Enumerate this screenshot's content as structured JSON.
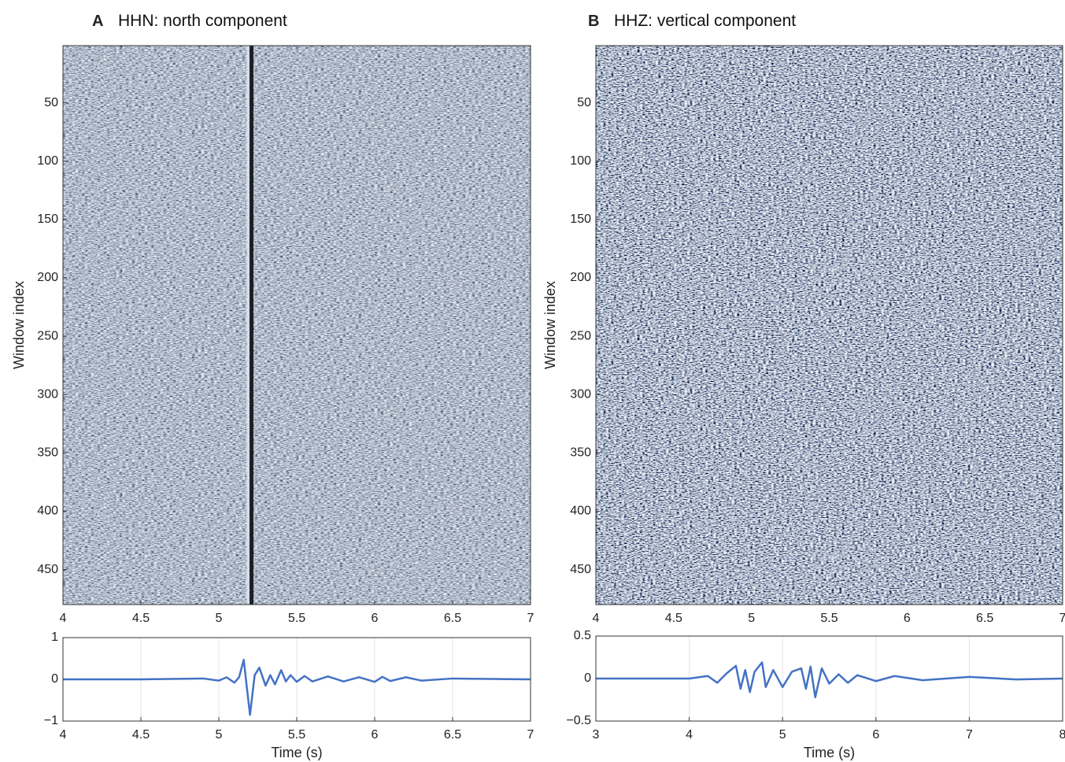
{
  "chart_data": [
    {
      "type": "heatmap",
      "panel_label": "A",
      "title": "HHN: north component",
      "ylabel": "Window index",
      "xlim": [
        4,
        7
      ],
      "xticks": [
        4,
        4.5,
        5,
        5.5,
        6,
        6.5,
        7
      ],
      "ylim": [
        1,
        480
      ],
      "yticks": [
        50,
        100,
        150,
        200,
        250,
        300,
        350,
        400,
        450
      ],
      "y_reversed": true
    },
    {
      "type": "line",
      "xlabel": "Time (s)",
      "xlim": [
        4,
        7
      ],
      "xticks": [
        4,
        4.5,
        5,
        5.5,
        6,
        6.5,
        7
      ],
      "ylim": [
        -1,
        1
      ],
      "yticks": [
        {
          "value": -1,
          "label": "−1"
        },
        0,
        1
      ],
      "grid": true,
      "x": [
        4,
        4.5,
        4.9,
        5.0,
        5.05,
        5.1,
        5.13,
        5.16,
        5.18,
        5.2,
        5.23,
        5.26,
        5.3,
        5.33,
        5.36,
        5.4,
        5.43,
        5.46,
        5.5,
        5.55,
        5.6,
        5.7,
        5.8,
        5.9,
        6.0,
        6.05,
        6.1,
        6.2,
        6.3,
        6.5,
        7
      ],
      "series": [
        {
          "color": "#4472c4",
          "values": [
            0,
            0,
            0.02,
            -0.03,
            0.05,
            -0.08,
            0.05,
            0.47,
            -0.2,
            -0.85,
            0.1,
            0.28,
            -0.15,
            0.1,
            -0.12,
            0.22,
            -0.05,
            0.1,
            -0.06,
            0.08,
            -0.05,
            0.07,
            -0.05,
            0.05,
            -0.06,
            0.06,
            -0.04,
            0.05,
            -0.03,
            0.02,
            0
          ]
        }
      ]
    },
    {
      "type": "heatmap",
      "panel_label": "B",
      "title": "HHZ: vertical component",
      "ylabel": "Window index",
      "xlim": [
        4,
        7
      ],
      "xticks": [
        4,
        4.5,
        5,
        5.5,
        6,
        6.5,
        7
      ],
      "ylim": [
        1,
        480
      ],
      "yticks": [
        50,
        100,
        150,
        200,
        250,
        300,
        350,
        400,
        450
      ],
      "y_reversed": true
    },
    {
      "type": "line",
      "xlabel": "Time (s)",
      "xlim": [
        3,
        8
      ],
      "xticks": [
        3,
        4,
        5,
        6,
        7,
        8
      ],
      "ylim": [
        -0.5,
        0.5
      ],
      "yticks": [
        {
          "value": -0.5,
          "label": "−0.5"
        },
        0,
        0.5
      ],
      "grid": true,
      "x": [
        3,
        3.5,
        4,
        4.2,
        4.3,
        4.4,
        4.5,
        4.55,
        4.6,
        4.65,
        4.7,
        4.78,
        4.82,
        4.9,
        5.0,
        5.1,
        5.2,
        5.25,
        5.3,
        5.35,
        5.42,
        5.5,
        5.6,
        5.7,
        5.8,
        6.0,
        6.2,
        6.5,
        7,
        7.5,
        8
      ],
      "series": [
        {
          "color": "#4472c4",
          "values": [
            0,
            0,
            0,
            0.03,
            -0.05,
            0.06,
            0.15,
            -0.12,
            0.1,
            -0.16,
            0.08,
            0.19,
            -0.1,
            0.1,
            -0.1,
            0.08,
            0.12,
            -0.12,
            0.14,
            -0.22,
            0.12,
            -0.06,
            0.05,
            -0.05,
            0.04,
            -0.03,
            0.03,
            -0.02,
            0.02,
            -0.01,
            0
          ]
        }
      ]
    }
  ]
}
